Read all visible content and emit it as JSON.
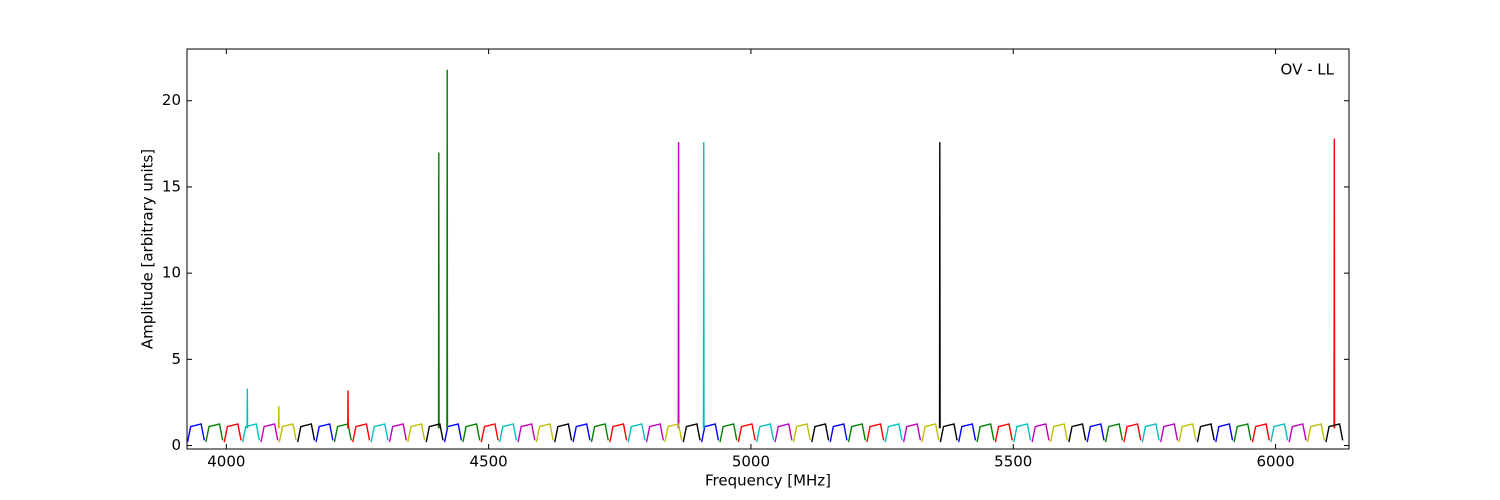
{
  "chart_data": {
    "type": "line",
    "annotation": "OV - LL",
    "xlabel": "Frequency [MHz]",
    "ylabel": "Amplitude [arbitrary units]",
    "xlim": [
      3925,
      6140
    ],
    "ylim": [
      -0.2,
      23
    ],
    "xticks": [
      4000,
      4500,
      5000,
      5500,
      6000
    ],
    "yticks": [
      0,
      5,
      10,
      15,
      20
    ],
    "series": [
      {
        "color": "#0000ff",
        "x": [
          3926,
          3932,
          3952,
          3958,
          null,
          4171,
          4177,
          4197,
          4203,
          null,
          4416,
          4422,
          4442,
          4448,
          null,
          4661,
          4667,
          4687,
          4693,
          null,
          4906,
          4912,
          4932,
          4938,
          null,
          5151,
          5157,
          5177,
          5183,
          null,
          5396,
          5402,
          5422,
          5428,
          null,
          5641,
          5647,
          5667,
          5673,
          null,
          5886,
          5892,
          5912,
          5918
        ],
        "values": [
          0.2,
          1.1,
          1.25,
          0.3,
          null,
          0.2,
          1.1,
          1.25,
          0.3,
          null,
          0.2,
          1.1,
          1.25,
          0.3,
          null,
          0.2,
          1.1,
          1.25,
          0.3,
          null,
          0.2,
          1.1,
          1.25,
          0.3,
          null,
          0.2,
          1.1,
          1.25,
          0.3,
          null,
          0.2,
          1.1,
          1.25,
          0.3,
          null,
          0.2,
          1.1,
          1.25,
          0.3,
          null,
          0.2,
          1.1,
          1.25,
          0.3
        ]
      },
      {
        "color": "#008000",
        "x": [
          3961,
          3967,
          3987,
          3993,
          null,
          4206,
          4212,
          4232,
          4238,
          null,
          4451,
          4457,
          4477,
          4483,
          null,
          4696,
          4702,
          4722,
          4728,
          null,
          4941,
          4947,
          4967,
          4973,
          null,
          5186,
          5192,
          5212,
          5218,
          null,
          5431,
          5437,
          5457,
          5463,
          null,
          5676,
          5682,
          5702,
          5708,
          null,
          5921,
          5927,
          5947,
          5953,
          null,
          4404.5,
          4405,
          4405.5,
          null,
          4420.5,
          4421,
          4421.5
        ],
        "values": [
          0.2,
          1.1,
          1.25,
          0.3,
          null,
          0.2,
          1.1,
          1.25,
          0.3,
          null,
          0.2,
          1.1,
          1.25,
          0.3,
          null,
          0.2,
          1.1,
          1.25,
          0.3,
          null,
          0.2,
          1.1,
          1.25,
          0.3,
          null,
          0.2,
          1.1,
          1.25,
          0.3,
          null,
          0.2,
          1.1,
          1.25,
          0.3,
          null,
          0.2,
          1.1,
          1.25,
          0.3,
          null,
          0.2,
          1.1,
          1.25,
          0.3,
          null,
          1,
          17.0,
          1,
          null,
          1,
          21.8,
          1
        ]
      },
      {
        "color": "#ff0000",
        "x": [
          3996,
          4002,
          4022,
          4028,
          null,
          4241,
          4247,
          4267,
          4273,
          null,
          4486,
          4492,
          4512,
          4518,
          null,
          4731,
          4737,
          4757,
          4763,
          null,
          4976,
          4982,
          5002,
          5008,
          null,
          5221,
          5227,
          5247,
          5253,
          null,
          5466,
          5472,
          5492,
          5498,
          null,
          5711,
          5717,
          5737,
          5743,
          null,
          5956,
          5962,
          5982,
          5988,
          null,
          4231.5,
          4232,
          4232.5,
          null,
          6111.5,
          6112,
          6112.5
        ],
        "values": [
          0.2,
          1.1,
          1.25,
          0.3,
          null,
          0.2,
          1.1,
          1.25,
          0.3,
          null,
          0.2,
          1.1,
          1.25,
          0.3,
          null,
          0.2,
          1.1,
          1.25,
          0.3,
          null,
          0.2,
          1.1,
          1.25,
          0.3,
          null,
          0.2,
          1.1,
          1.25,
          0.3,
          null,
          0.2,
          1.1,
          1.25,
          0.3,
          null,
          0.2,
          1.1,
          1.25,
          0.3,
          null,
          0.2,
          1.1,
          1.25,
          0.3,
          null,
          1,
          3.2,
          1,
          null,
          1,
          17.8,
          1
        ]
      },
      {
        "color": "#00bfbf",
        "x": [
          4031,
          4037,
          4057,
          4063,
          null,
          4276,
          4282,
          4302,
          4308,
          null,
          4521,
          4527,
          4547,
          4553,
          null,
          4766,
          4772,
          4792,
          4798,
          null,
          5011,
          5017,
          5037,
          5043,
          null,
          5256,
          5262,
          5282,
          5288,
          null,
          5501,
          5507,
          5527,
          5533,
          null,
          5746,
          5752,
          5772,
          5778,
          null,
          5991,
          5997,
          6017,
          6023,
          null,
          4039.5,
          4040,
          4040.5,
          null,
          4909.5,
          4910,
          4910.5
        ],
        "values": [
          0.2,
          1.1,
          1.25,
          0.3,
          null,
          0.2,
          1.1,
          1.25,
          0.3,
          null,
          0.2,
          1.1,
          1.25,
          0.3,
          null,
          0.2,
          1.1,
          1.25,
          0.3,
          null,
          0.2,
          1.1,
          1.25,
          0.3,
          null,
          0.2,
          1.1,
          1.25,
          0.3,
          null,
          0.2,
          1.1,
          1.25,
          0.3,
          null,
          0.2,
          1.1,
          1.25,
          0.3,
          null,
          0.2,
          1.1,
          1.25,
          0.3,
          null,
          1,
          3.3,
          1,
          null,
          1,
          17.6,
          1
        ]
      },
      {
        "color": "#bf00bf",
        "x": [
          4066,
          4072,
          4092,
          4098,
          null,
          4311,
          4317,
          4337,
          4343,
          null,
          4556,
          4562,
          4582,
          4588,
          null,
          4801,
          4807,
          4827,
          4833,
          null,
          5046,
          5052,
          5072,
          5078,
          null,
          5291,
          5297,
          5317,
          5323,
          null,
          5536,
          5542,
          5562,
          5568,
          null,
          5781,
          5787,
          5807,
          5813,
          null,
          6026,
          6032,
          6052,
          6058,
          null,
          4861.5,
          4862,
          4862.5
        ],
        "values": [
          0.2,
          1.1,
          1.25,
          0.3,
          null,
          0.2,
          1.1,
          1.25,
          0.3,
          null,
          0.2,
          1.1,
          1.25,
          0.3,
          null,
          0.2,
          1.1,
          1.25,
          0.3,
          null,
          0.2,
          1.1,
          1.25,
          0.3,
          null,
          0.2,
          1.1,
          1.25,
          0.3,
          null,
          0.2,
          1.1,
          1.25,
          0.3,
          null,
          0.2,
          1.1,
          1.25,
          0.3,
          null,
          0.2,
          1.1,
          1.25,
          0.3,
          null,
          1,
          17.6,
          1
        ]
      },
      {
        "color": "#bfbf00",
        "x": [
          4101,
          4107,
          4127,
          4133,
          null,
          4346,
          4352,
          4372,
          4378,
          null,
          4591,
          4597,
          4617,
          4623,
          null,
          4836,
          4842,
          4862,
          4868,
          null,
          5081,
          5087,
          5107,
          5113,
          null,
          5326,
          5332,
          5352,
          5358,
          null,
          5571,
          5577,
          5597,
          5603,
          null,
          5816,
          5822,
          5842,
          5848,
          null,
          6061,
          6067,
          6087,
          6093,
          null,
          4099.5,
          4100,
          4100.5
        ],
        "values": [
          0.2,
          1.1,
          1.25,
          0.3,
          null,
          0.2,
          1.1,
          1.25,
          0.3,
          null,
          0.2,
          1.1,
          1.25,
          0.3,
          null,
          0.2,
          1.1,
          1.25,
          0.3,
          null,
          0.2,
          1.1,
          1.25,
          0.3,
          null,
          0.2,
          1.1,
          1.25,
          0.3,
          null,
          0.2,
          1.1,
          1.25,
          0.3,
          null,
          0.2,
          1.1,
          1.25,
          0.3,
          null,
          0.2,
          1.1,
          1.25,
          0.3,
          null,
          1,
          2.3,
          1
        ]
      },
      {
        "color": "#000000",
        "x": [
          4136,
          4142,
          4162,
          4168,
          null,
          4381,
          4387,
          4407,
          4413,
          null,
          4626,
          4632,
          4652,
          4658,
          null,
          4871,
          4877,
          4897,
          4903,
          null,
          5116,
          5122,
          5142,
          5148,
          null,
          5361,
          5367,
          5387,
          5393,
          null,
          5606,
          5612,
          5632,
          5638,
          null,
          5851,
          5857,
          5877,
          5883,
          null,
          6096,
          6102,
          6122,
          6128,
          null,
          5359.5,
          5360,
          5360.5
        ],
        "values": [
          0.2,
          1.1,
          1.25,
          0.3,
          null,
          0.2,
          1.1,
          1.25,
          0.3,
          null,
          0.2,
          1.1,
          1.25,
          0.3,
          null,
          0.2,
          1.1,
          1.25,
          0.3,
          null,
          0.2,
          1.1,
          1.25,
          0.3,
          null,
          0.2,
          1.1,
          1.25,
          0.3,
          null,
          0.2,
          1.1,
          1.25,
          0.3,
          null,
          0.2,
          1.1,
          1.25,
          0.3,
          null,
          0.2,
          1.1,
          1.25,
          0.3,
          null,
          1,
          17.6,
          1
        ]
      }
    ]
  }
}
